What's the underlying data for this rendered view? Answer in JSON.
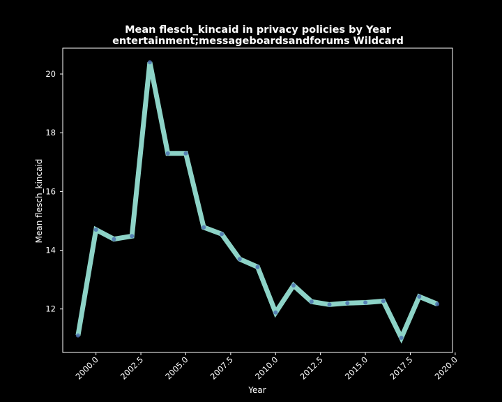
{
  "chart_data": {
    "type": "line",
    "title": "Mean flesch_kincaid in privacy policies by Year",
    "subtitle": "entertainment;messageboardsandforums Wildcard",
    "xlabel": "Year",
    "ylabel": "Mean flesch_kincaid",
    "x": [
      1999,
      2000,
      2001,
      2002,
      2003,
      2004,
      2005,
      2006,
      2007,
      2008,
      2009,
      2010,
      2011,
      2012,
      2013,
      2014,
      2015,
      2016,
      2017,
      2018,
      2019
    ],
    "series": [
      {
        "values": [
          11.1,
          14.7,
          14.38,
          14.48,
          20.4,
          17.3,
          17.3,
          14.78,
          14.55,
          13.7,
          13.43,
          11.88,
          12.8,
          12.25,
          12.15,
          12.2,
          12.22,
          12.27,
          11.02,
          12.42,
          12.17
        ]
      }
    ],
    "xticks": [
      "2000.0",
      "2002.5",
      "2005.0",
      "2007.5",
      "2010.0",
      "2012.5",
      "2015.0",
      "2017.5",
      "2020.0"
    ],
    "xtick_values": [
      2000,
      2002.5,
      2005,
      2007.5,
      2010,
      2012.5,
      2015,
      2017.5,
      2020
    ],
    "yticks": [
      "12",
      "14",
      "16",
      "18",
      "20"
    ],
    "ytick_values": [
      12,
      14,
      16,
      18,
      20
    ],
    "xlim": [
      1998.15,
      2019.85
    ],
    "ylim": [
      10.52,
      20.88
    ],
    "grid": false,
    "colors": {
      "background": "#000000",
      "axes": "#ffffff",
      "line": "#8dd3c7",
      "marker": "#4c72b0"
    }
  }
}
